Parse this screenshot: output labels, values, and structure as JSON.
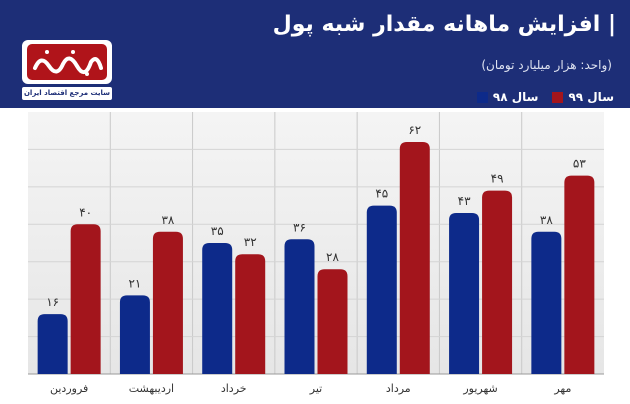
{
  "header": {
    "title": "| افزایش ماهانه مقدار شبه پول",
    "unit_note": "(واحد: هزار میلیارد تومان)"
  },
  "logo": {
    "tagline": "سایت مرجع اقتصاد ایران",
    "wordmark": "اقتصادنیوز"
  },
  "colors": {
    "header_bg": "#1d2e77",
    "series_98": "#0d2a8a",
    "series_99": "#a3151c"
  },
  "chart_data": {
    "type": "bar",
    "title": "| افزایش ماهانه مقدار شبه پول",
    "ylabel": "",
    "xlabel": "",
    "ylim": [
      0,
      70
    ],
    "grid": true,
    "legend_position": "top-right",
    "categories": [
      "فروردین",
      "اردیبهشت",
      "خرداد",
      "تیر",
      "مرداد",
      "شهریور",
      "مهر"
    ],
    "value_labels": {
      "سال ۹۸": [
        "۱۶",
        "۲۱",
        "۳۵",
        "۳۶",
        "۴۵",
        "۴۳",
        "۳۸"
      ],
      "سال ۹۹": [
        "۴۰",
        "۳۸",
        "۳۲",
        "۲۸",
        "۶۲",
        "۴۹",
        "۵۳"
      ]
    },
    "series": [
      {
        "name": "سال ۹۸",
        "color": "#0d2a8a",
        "values": [
          16,
          21,
          35,
          36,
          45,
          43,
          38
        ]
      },
      {
        "name": "سال ۹۹",
        "color": "#a3151c",
        "values": [
          40,
          38,
          32,
          28,
          62,
          49,
          53
        ]
      }
    ]
  }
}
